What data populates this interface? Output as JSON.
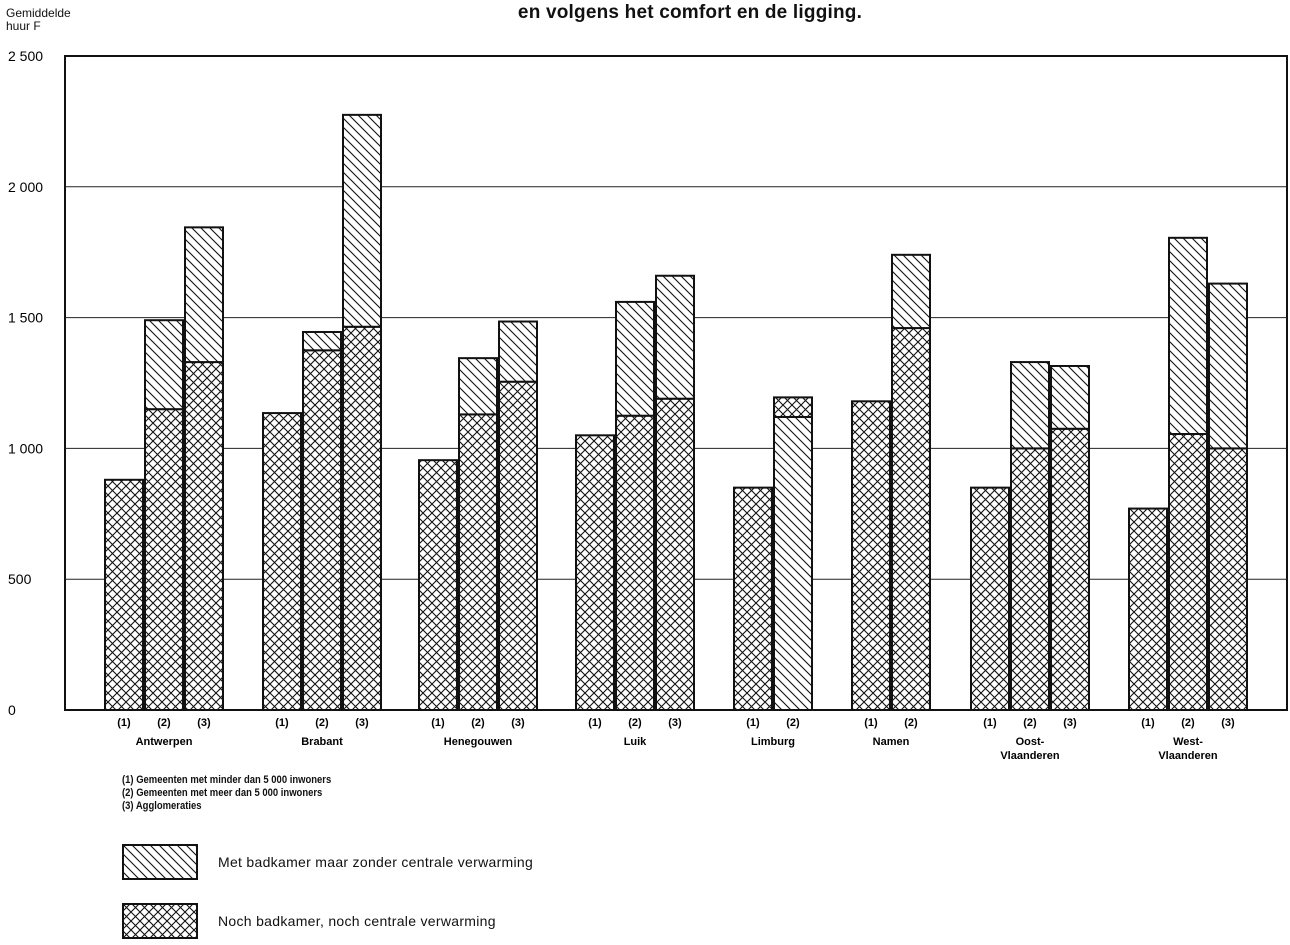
{
  "title": "en volgens het comfort en de ligging.",
  "ylabel_line1": "Gemiddelde",
  "ylabel_line2": "huur F",
  "notes": [
    "(1)  Gemeenten met minder dan 5 000 inwoners",
    "(2)  Gemeenten met meer dan 5 000 inwoners",
    "(3)  Agglomeraties"
  ],
  "legend": [
    {
      "label": "Met badkamer maar zonder centrale verwarming",
      "pattern": "diagonal-hatch"
    },
    {
      "label": "Noch badkamer, noch centrale verwarming",
      "pattern": "cross-hatch"
    }
  ],
  "chart_data": {
    "type": "bar",
    "stacked": true,
    "ylim": [
      0,
      2500
    ],
    "yticks": [
      0,
      500,
      1000,
      1500,
      2000,
      2500
    ],
    "ytick_labels": [
      "0",
      "500",
      "1 000",
      "1 500",
      "2 000",
      "2 500"
    ],
    "grid": true,
    "series_order": [
      "Noch badkamer, noch centrale verwarming",
      "Met badkamer maar zonder centrale verwarming"
    ],
    "groups": [
      {
        "name": "Antwerpen",
        "bars": [
          {
            "label": "(1)",
            "noch": 880,
            "met_total": 880
          },
          {
            "label": "(2)",
            "noch": 1150,
            "met_total": 1490
          },
          {
            "label": "(3)",
            "noch": 1330,
            "met_total": 1845
          }
        ]
      },
      {
        "name": "Brabant",
        "bars": [
          {
            "label": "(1)",
            "noch": 1135,
            "met_total": 1135
          },
          {
            "label": "(2)",
            "noch": 1375,
            "met_total": 1445
          },
          {
            "label": "(3)",
            "noch": 1465,
            "met_total": 2275
          }
        ]
      },
      {
        "name": "Henegouwen",
        "bars": [
          {
            "label": "(1)",
            "noch": 955,
            "met_total": 955
          },
          {
            "label": "(2)",
            "noch": 1130,
            "met_total": 1345
          },
          {
            "label": "(3)",
            "noch": 1255,
            "met_total": 1485
          }
        ]
      },
      {
        "name": "Luik",
        "bars": [
          {
            "label": "(1)",
            "noch": 1050,
            "met_total": 1050
          },
          {
            "label": "(2)",
            "noch": 1125,
            "met_total": 1560
          },
          {
            "label": "(3)",
            "noch": 1190,
            "met_total": 1660
          }
        ]
      },
      {
        "name": "Limburg",
        "bars": [
          {
            "label": "(1)",
            "noch": 850,
            "met_total": 850
          },
          {
            "label": "(2)",
            "noch": 0,
            "met_total": 1120,
            "met_top": 1195
          }
        ]
      },
      {
        "name": "Namen",
        "bars": [
          {
            "label": "(1)",
            "noch": 1180,
            "met_total": 1180
          },
          {
            "label": "(2)",
            "noch": 1460,
            "met_total": 1740
          }
        ]
      },
      {
        "name": "Oost-\nVlaanderen",
        "bars": [
          {
            "label": "(1)",
            "noch": 850,
            "met_total": 850
          },
          {
            "label": "(2)",
            "noch": 1000,
            "met_total": 1330
          },
          {
            "label": "(3)",
            "noch": 1075,
            "met_total": 1315
          }
        ]
      },
      {
        "name": "West-\nVlaanderen",
        "bars": [
          {
            "label": "(1)",
            "noch": 770,
            "met_total": 770
          },
          {
            "label": "(2)",
            "noch": 1055,
            "met_total": 1805
          },
          {
            "label": "(3)",
            "noch": 1000,
            "met_total": 1630
          }
        ]
      }
    ]
  }
}
